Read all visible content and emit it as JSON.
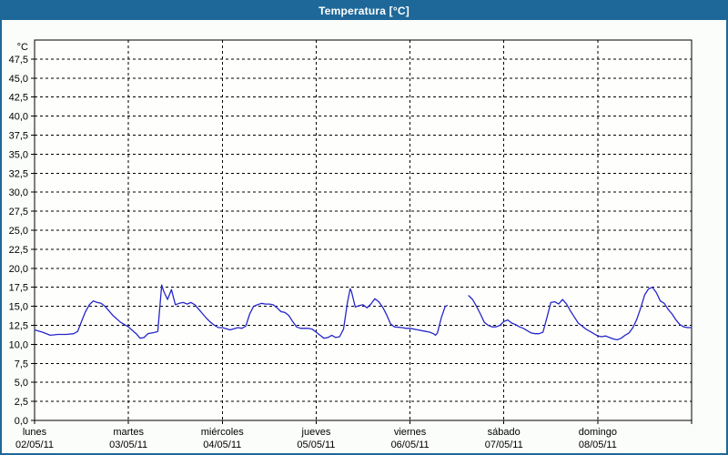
{
  "window": {
    "title": "Temperatura [°C]"
  },
  "colors": {
    "titlebar_bg": "#1e6899",
    "window_border": "#1e6899",
    "chart_bg": "#fbfdfa",
    "plot_bg": "#fefffd",
    "grid": "#000000",
    "axis": "#000000",
    "line": "#2626c9",
    "title_text": "#ffffff",
    "label_text": "#000000"
  },
  "chart_data": {
    "type": "line",
    "title": "Temperatura [°C]",
    "unit_label": "°C",
    "grid": "dashed",
    "legend_position": "none",
    "ylim": [
      0,
      50
    ],
    "ytick_step": 2.5,
    "ytick_labels": [
      "0,0",
      "2,5",
      "5,0",
      "7,5",
      "10,0",
      "12,5",
      "15,0",
      "17,5",
      "20,0",
      "22,5",
      "25,0",
      "27,5",
      "30,0",
      "32,5",
      "35,0",
      "37,5",
      "40,0",
      "42,5",
      "45,0",
      "47,5"
    ],
    "xlim_hours": [
      0,
      168
    ],
    "x_days": [
      {
        "label": "lunes",
        "date": "02/05/11"
      },
      {
        "label": "martes",
        "date": "03/05/11"
      },
      {
        "label": "miércoles",
        "date": "04/05/11"
      },
      {
        "label": "jueves",
        "date": "05/05/11"
      },
      {
        "label": "viernes",
        "date": "06/05/11"
      },
      {
        "label": "sábado",
        "date": "07/05/11"
      },
      {
        "label": "domingo",
        "date": "08/05/11"
      }
    ],
    "series": [
      {
        "name": "Temperatura",
        "x_hours": [
          0,
          2,
          4,
          6,
          8,
          10,
          11,
          12,
          13,
          14,
          15,
          16,
          17,
          18,
          19,
          20,
          22,
          24,
          26,
          27,
          28,
          29,
          30,
          31,
          31.5,
          32.5,
          33,
          34,
          35,
          36,
          37,
          38,
          39,
          40,
          41,
          42,
          43,
          44,
          45,
          46,
          47,
          48,
          50,
          52,
          53,
          54,
          55,
          56,
          57,
          58,
          59,
          60,
          61,
          62,
          63,
          64,
          65,
          66,
          67,
          68,
          70,
          71,
          72,
          73,
          74,
          75,
          76,
          77,
          78,
          79,
          80,
          80.7,
          81,
          82,
          83,
          84,
          85,
          86,
          87,
          88,
          89,
          90,
          91,
          92,
          94,
          95,
          96,
          98,
          100,
          101,
          102,
          102.5,
          103,
          104,
          105,
          105.5,
          108,
          111,
          112,
          113,
          114,
          115,
          116,
          117,
          118,
          119,
          120,
          121,
          122,
          123,
          124,
          125,
          126,
          127,
          128,
          129,
          130,
          131,
          132,
          133,
          134,
          135,
          136,
          137,
          138,
          139,
          140,
          141,
          142,
          143,
          144,
          145,
          146,
          147,
          148,
          149,
          150,
          151,
          152,
          153,
          154,
          155,
          156,
          157,
          158,
          159,
          160,
          161,
          162,
          163,
          164,
          165,
          166,
          167,
          168
        ],
        "values": [
          11.9,
          11.6,
          11.2,
          11.3,
          11.3,
          11.4,
          11.7,
          13.0,
          14.3,
          15.2,
          15.7,
          15.5,
          15.4,
          15.0,
          14.4,
          13.8,
          12.9,
          12.3,
          11.4,
          10.8,
          10.9,
          11.4,
          11.5,
          11.6,
          11.7,
          17.8,
          17.0,
          15.9,
          17.2,
          15.2,
          15.4,
          15.5,
          15.3,
          15.5,
          15.2,
          14.6,
          14.0,
          13.4,
          12.9,
          12.5,
          12.2,
          12.2,
          11.9,
          12.2,
          12.1,
          12.4,
          14.0,
          15.0,
          15.2,
          15.4,
          15.3,
          15.3,
          15.2,
          14.8,
          14.3,
          14.2,
          13.8,
          13.0,
          12.3,
          12.1,
          12.1,
          12.0,
          11.6,
          11.2,
          10.8,
          10.9,
          11.2,
          10.9,
          11.0,
          12.0,
          15.5,
          17.3,
          17.0,
          14.9,
          15.1,
          15.2,
          14.8,
          15.3,
          16.0,
          15.6,
          14.9,
          13.9,
          12.7,
          12.3,
          12.2,
          12.1,
          12.1,
          11.9,
          11.7,
          11.6,
          11.4,
          11.2,
          11.5,
          13.5,
          15.0,
          15.1,
          null,
          16.4,
          15.9,
          15.0,
          14.0,
          12.9,
          12.5,
          12.3,
          12.3,
          12.5,
          13.0,
          13.2,
          12.8,
          12.6,
          12.3,
          12.1,
          11.8,
          11.5,
          11.4,
          11.4,
          11.6,
          13.5,
          15.5,
          15.6,
          15.3,
          15.9,
          15.3,
          14.4,
          13.6,
          12.8,
          12.4,
          12.0,
          11.7,
          11.4,
          11.1,
          11.0,
          11.1,
          10.9,
          10.7,
          10.6,
          10.8,
          11.2,
          11.5,
          12.2,
          13.3,
          14.8,
          16.5,
          17.3,
          17.5,
          16.8,
          15.7,
          15.4,
          14.6,
          14.0,
          13.2,
          12.6,
          12.3,
          12.2,
          12.2
        ]
      }
    ]
  }
}
